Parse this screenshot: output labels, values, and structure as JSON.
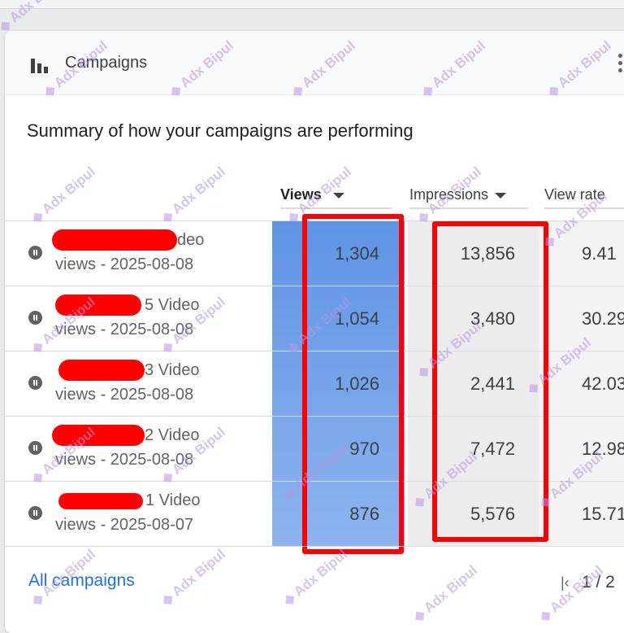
{
  "card": {
    "title": "Campaigns",
    "subtitle": "Summary of how your campaigns are performing"
  },
  "columns": {
    "views": "Views",
    "impressions": "Impressions",
    "view_rate": "View rate"
  },
  "rows": [
    {
      "name_line1": "deo",
      "name_line2": "views - 2025-08-08",
      "views": "1,304",
      "impressions": "13,856",
      "view_rate": "9.41"
    },
    {
      "name_line1": "5 Video",
      "name_line2": "views - 2025-08-08",
      "views": "1,054",
      "impressions": "3,480",
      "view_rate": "30.29"
    },
    {
      "name_line1": "3 Video",
      "name_line2": "views - 2025-08-08",
      "views": "1,026",
      "impressions": "2,441",
      "view_rate": "42.03"
    },
    {
      "name_line1": "2 Video",
      "name_line2": "views - 2025-08-08",
      "views": "970",
      "impressions": "7,472",
      "view_rate": "12.98"
    },
    {
      "name_line1": "1 Video",
      "name_line2": "views - 2025-08-07",
      "views": "876",
      "impressions": "5,576",
      "view_rate": "15.71"
    }
  ],
  "footer": {
    "all_campaigns": "All campaigns",
    "pagination": "1 / 2"
  },
  "watermark": "Adx Bipul",
  "colors": {
    "link": "#1a73e8",
    "views_highlight": "#6b9de8",
    "redaction": "#ff0000"
  },
  "icons": [
    "bar-chart-icon",
    "more-vert-icon",
    "pause-icon",
    "first-page-icon"
  ]
}
